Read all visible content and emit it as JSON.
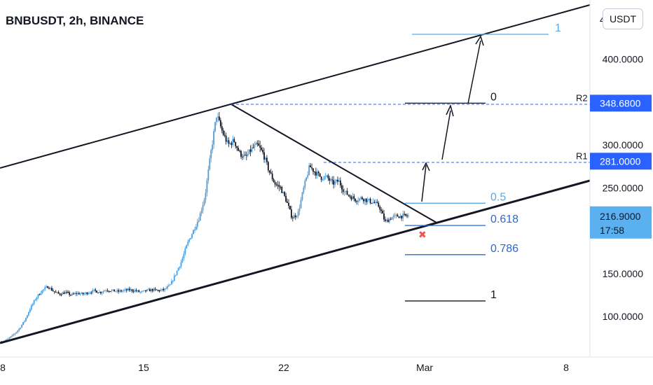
{
  "header": {
    "title": "BNBUSDT, 2h, BINANCE",
    "currency": "USDT"
  },
  "chart_data": {
    "type": "candlestick",
    "symbol": "BNBUSDT",
    "interval": "2h",
    "exchange": "BINANCE",
    "x_ticks": [
      "8",
      "15",
      "22",
      "Mar",
      "8"
    ],
    "y_ticks": [
      {
        "value": 400,
        "label": "400.0000"
      },
      {
        "value": 300,
        "label": "300.0000"
      },
      {
        "value": 250,
        "label": "250.0000"
      },
      {
        "value": 150,
        "label": "150.0000"
      },
      {
        "value": 100,
        "label": "100.0000"
      }
    ],
    "y_range": [
      55,
      460
    ],
    "top_partial_label": "4",
    "price_tags": [
      {
        "name": "R2",
        "value": 348.68,
        "label": "348.6800",
        "color": "#2962ff"
      },
      {
        "name": "R1",
        "value": 281.0,
        "label": "281.0000",
        "color": "#2962ff"
      },
      {
        "name": "last",
        "value": 216.9,
        "label": "216.9000",
        "countdown": "17:58",
        "color": "#5bb1f0"
      }
    ],
    "fib_levels": [
      {
        "label": "1",
        "value": 429,
        "color": "#5aa9e6"
      },
      {
        "label": "0",
        "value": 348.68,
        "color": "#131722"
      },
      {
        "label": "0.5",
        "value": 232,
        "color": "#5aa9e6"
      },
      {
        "label": "0.618",
        "value": 206,
        "color": "#2a6ad0"
      },
      {
        "label": "0.786",
        "value": 172,
        "color": "#2a6ad0"
      },
      {
        "label": "1",
        "value": 118,
        "color": "#131722"
      }
    ],
    "price_path": [
      [
        0,
        70
      ],
      [
        2,
        73
      ],
      [
        4,
        78
      ],
      [
        5,
        85
      ],
      [
        6,
        95
      ],
      [
        7,
        110
      ],
      [
        8,
        122
      ],
      [
        9,
        130
      ],
      [
        10,
        135
      ],
      [
        11,
        129
      ],
      [
        12,
        126
      ],
      [
        13,
        128
      ],
      [
        14,
        125
      ],
      [
        15,
        127
      ],
      [
        16,
        126
      ],
      [
        17,
        128
      ],
      [
        18,
        130
      ],
      [
        19,
        128
      ],
      [
        20,
        131
      ],
      [
        21,
        130
      ],
      [
        22,
        129
      ],
      [
        23,
        130
      ],
      [
        24,
        131
      ],
      [
        25,
        130
      ],
      [
        26,
        128
      ],
      [
        27,
        130
      ],
      [
        28,
        131
      ],
      [
        29,
        130
      ],
      [
        30,
        131
      ],
      [
        31,
        136
      ],
      [
        32,
        150
      ],
      [
        33,
        165
      ],
      [
        34,
        185
      ],
      [
        35,
        200
      ],
      [
        36,
        215
      ],
      [
        37,
        240
      ],
      [
        38,
        290
      ],
      [
        39,
        335
      ],
      [
        40,
        315
      ],
      [
        41,
        300
      ],
      [
        42,
        305
      ],
      [
        43,
        290
      ],
      [
        44,
        285
      ],
      [
        45,
        295
      ],
      [
        46,
        300
      ],
      [
        47,
        290
      ],
      [
        48,
        270
      ],
      [
        49,
        255
      ],
      [
        50,
        250
      ],
      [
        51,
        235
      ],
      [
        52,
        215
      ],
      [
        53,
        220
      ],
      [
        54,
        250
      ],
      [
        55,
        275
      ],
      [
        56,
        268
      ],
      [
        57,
        262
      ],
      [
        58,
        262
      ],
      [
        59,
        255
      ],
      [
        60,
        258
      ],
      [
        61,
        245
      ],
      [
        62,
        240
      ],
      [
        63,
        236
      ],
      [
        64,
        238
      ],
      [
        65,
        235
      ],
      [
        66,
        233
      ],
      [
        67,
        228
      ],
      [
        68,
        210
      ],
      [
        69,
        215
      ],
      [
        70,
        217
      ]
    ]
  }
}
